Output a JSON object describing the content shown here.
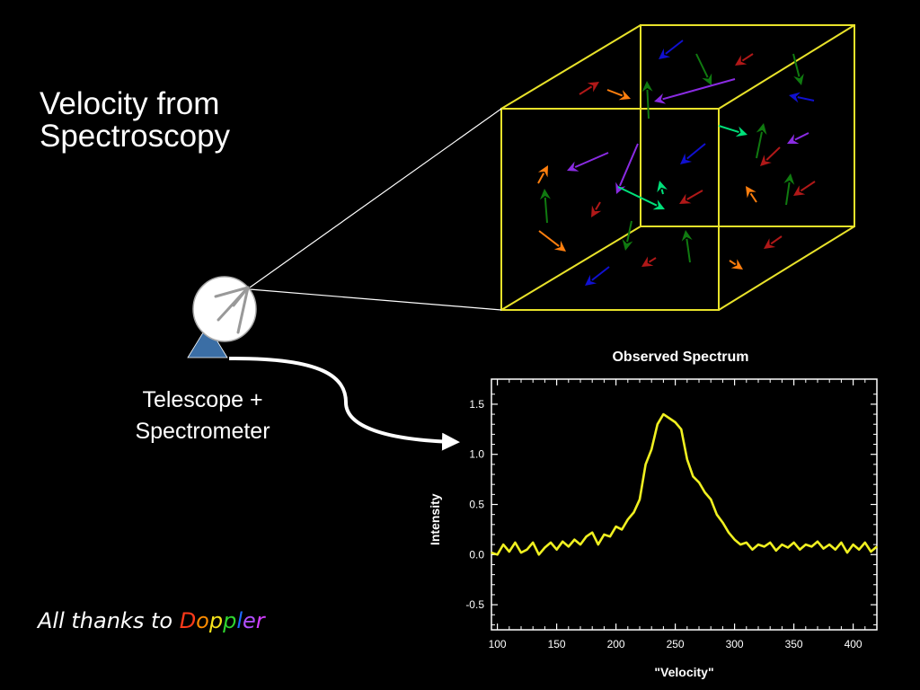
{
  "slide": {
    "title_line1": "Velocity from",
    "title_line2": "Spectroscopy",
    "telescope_line1": "Telescope +",
    "telescope_line2": "Spectrometer",
    "thanks_prefix": "All thanks to ",
    "doppler_letters": [
      {
        "ch": "D",
        "color": "#ff3a1a"
      },
      {
        "ch": "o",
        "color": "#ff8c00"
      },
      {
        "ch": "p",
        "color": "#f5e21b"
      },
      {
        "ch": "p",
        "color": "#2fd52f"
      },
      {
        "ch": "l",
        "color": "#1f6bff"
      },
      {
        "ch": "e",
        "color": "#b04fff"
      },
      {
        "ch": "r",
        "color": "#d23cff"
      }
    ]
  },
  "colors": {
    "cube": "#e8e22a",
    "spectrum": "#f0f020",
    "telescope_base": "#3b6ea5",
    "arrow_palette": [
      "#b01818",
      "#ff7f0e",
      "#1010d0",
      "#8a2be2",
      "#107a10",
      "#00e07a"
    ]
  },
  "icons": {
    "telescope": "radio-dish-icon",
    "arrow": "curved-arrow-icon"
  },
  "chart_data": {
    "type": "line",
    "title": "Observed Spectrum",
    "xlabel": "\"Velocity\"",
    "ylabel": "Intensity",
    "xlim": [
      95,
      420
    ],
    "ylim": [
      -0.75,
      1.75
    ],
    "xticks": [
      100,
      150,
      200,
      250,
      300,
      350,
      400
    ],
    "yticks": [
      -0.5,
      0.0,
      0.5,
      1.0,
      1.5
    ],
    "xtick_labels": [
      "100",
      "150",
      "200",
      "250",
      "300",
      "350",
      "400"
    ],
    "ytick_labels": [
      "-0.5",
      "0.0",
      "0.5",
      "1.0",
      "1.5"
    ],
    "series": [
      {
        "x": [
          95,
          100,
          105,
          110,
          115,
          120,
          125,
          130,
          135,
          140,
          145,
          150,
          155,
          160,
          165,
          170,
          175,
          180,
          185,
          190,
          195,
          200,
          205,
          210,
          215,
          220,
          225,
          230,
          235,
          240,
          245,
          250,
          255,
          260,
          265,
          270,
          275,
          280,
          285,
          290,
          295,
          300,
          305,
          310,
          315,
          320,
          325,
          330,
          335,
          340,
          345,
          350,
          355,
          360,
          365,
          370,
          375,
          380,
          385,
          390,
          395,
          400,
          405,
          410,
          415,
          420
        ],
        "y": [
          0.02,
          0.0,
          0.1,
          0.03,
          0.12,
          0.02,
          0.05,
          0.12,
          0.0,
          0.07,
          0.12,
          0.05,
          0.13,
          0.08,
          0.15,
          0.1,
          0.18,
          0.22,
          0.1,
          0.2,
          0.18,
          0.28,
          0.25,
          0.35,
          0.42,
          0.55,
          0.9,
          1.05,
          1.3,
          1.4,
          1.36,
          1.32,
          1.25,
          0.95,
          0.78,
          0.72,
          0.62,
          0.55,
          0.4,
          0.32,
          0.22,
          0.15,
          0.1,
          0.12,
          0.05,
          0.1,
          0.08,
          0.12,
          0.04,
          0.1,
          0.07,
          0.12,
          0.05,
          0.1,
          0.08,
          0.13,
          0.06,
          0.1,
          0.05,
          0.12,
          0.02,
          0.1,
          0.05,
          0.12,
          0.03,
          0.08
        ]
      }
    ]
  }
}
